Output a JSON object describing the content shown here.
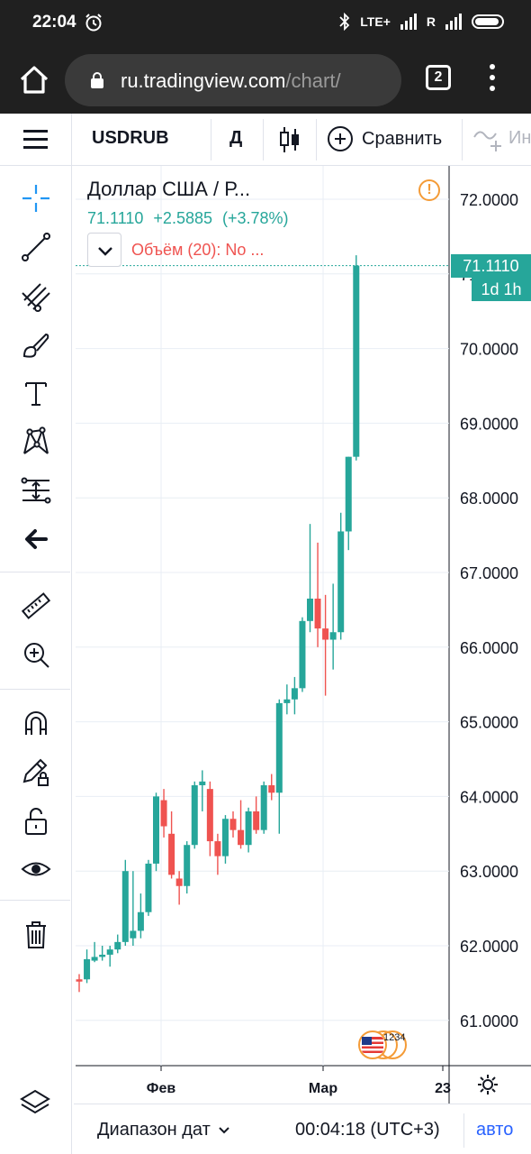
{
  "status_bar": {
    "time": "22:04",
    "network": "LTE+",
    "roaming": "R"
  },
  "browser": {
    "url_domain": "ru.tradingview.com",
    "url_path": "/chart/",
    "tab_count": "2"
  },
  "toolbar": {
    "symbol": "USDRUB",
    "interval": "Д",
    "compare_label": "Сравнить",
    "indicators_label": "Ин"
  },
  "legend": {
    "title": "Доллар США / Р...",
    "last": "71.1110",
    "change": "+2.5885",
    "change_pct": "(+3.78%)",
    "volume_label": "Объём (20): No ..."
  },
  "price_tag": {
    "value": "71.1110",
    "countdown": "1d 1h"
  },
  "bottom": {
    "range_label": "Диапазон дат",
    "clock": "00:04:18 (UTC+3)",
    "auto_label": "авто"
  },
  "flag_badge_text": "1234",
  "colors": {
    "up": "#26a69a",
    "down": "#ef5350",
    "accent": "#2962ff",
    "grid": "#e8eef4",
    "text": "#131722",
    "dark_bg": "#202020"
  },
  "chart_data": {
    "type": "candlestick",
    "title": "Доллар США / Р...",
    "y_ticks": [
      "72.0000",
      "71.0000",
      "70.0000",
      "69.0000",
      "68.0000",
      "67.0000",
      "66.0000",
      "65.0000",
      "64.0000",
      "63.0000",
      "62.0000",
      "61.0000"
    ],
    "x_ticks": [
      "Фев",
      "Мар",
      "23"
    ],
    "ylim": [
      60.4,
      72.4
    ],
    "last_price": 71.111,
    "candles": [
      {
        "o": 61.55,
        "h": 61.62,
        "l": 61.38,
        "c": 61.52
      },
      {
        "o": 61.55,
        "h": 61.95,
        "l": 61.5,
        "c": 61.82
      },
      {
        "o": 61.8,
        "h": 62.05,
        "l": 61.78,
        "c": 61.85
      },
      {
        "o": 61.85,
        "h": 62.0,
        "l": 61.8,
        "c": 61.88
      },
      {
        "o": 61.88,
        "h": 62.0,
        "l": 61.72,
        "c": 61.95
      },
      {
        "o": 61.95,
        "h": 62.15,
        "l": 61.9,
        "c": 62.05
      },
      {
        "o": 62.05,
        "h": 63.15,
        "l": 62.0,
        "c": 63.0
      },
      {
        "o": 62.1,
        "h": 63.0,
        "l": 62.0,
        "c": 62.2
      },
      {
        "o": 62.2,
        "h": 62.7,
        "l": 62.1,
        "c": 62.45
      },
      {
        "o": 62.45,
        "h": 63.15,
        "l": 62.4,
        "c": 63.1
      },
      {
        "o": 63.1,
        "h": 64.05,
        "l": 63.0,
        "c": 64.0
      },
      {
        "o": 63.95,
        "h": 64.1,
        "l": 63.45,
        "c": 63.6
      },
      {
        "o": 63.5,
        "h": 63.8,
        "l": 62.9,
        "c": 62.95
      },
      {
        "o": 62.9,
        "h": 63.0,
        "l": 62.55,
        "c": 62.8
      },
      {
        "o": 62.8,
        "h": 63.4,
        "l": 62.7,
        "c": 63.35
      },
      {
        "o": 63.35,
        "h": 64.2,
        "l": 63.3,
        "c": 64.15
      },
      {
        "o": 64.15,
        "h": 64.35,
        "l": 63.8,
        "c": 64.2
      },
      {
        "o": 64.1,
        "h": 64.2,
        "l": 63.2,
        "c": 63.4
      },
      {
        "o": 63.4,
        "h": 63.5,
        "l": 62.95,
        "c": 63.2
      },
      {
        "o": 63.2,
        "h": 63.75,
        "l": 63.1,
        "c": 63.7
      },
      {
        "o": 63.7,
        "h": 63.8,
        "l": 63.45,
        "c": 63.55
      },
      {
        "o": 63.55,
        "h": 63.95,
        "l": 63.3,
        "c": 63.35
      },
      {
        "o": 63.35,
        "h": 63.85,
        "l": 63.25,
        "c": 63.8
      },
      {
        "o": 63.8,
        "h": 64.0,
        "l": 63.5,
        "c": 63.55
      },
      {
        "o": 63.55,
        "h": 64.2,
        "l": 63.5,
        "c": 64.15
      },
      {
        "o": 64.15,
        "h": 64.3,
        "l": 63.95,
        "c": 64.05
      },
      {
        "o": 64.05,
        "h": 65.3,
        "l": 63.5,
        "c": 65.25
      },
      {
        "o": 65.25,
        "h": 65.5,
        "l": 65.1,
        "c": 65.3
      },
      {
        "o": 65.3,
        "h": 65.6,
        "l": 65.1,
        "c": 65.45
      },
      {
        "o": 65.45,
        "h": 66.4,
        "l": 65.4,
        "c": 66.35
      },
      {
        "o": 66.35,
        "h": 67.65,
        "l": 66.2,
        "c": 66.65
      },
      {
        "o": 66.65,
        "h": 67.4,
        "l": 66.0,
        "c": 66.25
      },
      {
        "o": 66.25,
        "h": 66.7,
        "l": 65.35,
        "c": 66.1
      },
      {
        "o": 66.1,
        "h": 66.85,
        "l": 65.7,
        "c": 66.2
      },
      {
        "o": 66.2,
        "h": 67.8,
        "l": 66.1,
        "c": 67.55
      },
      {
        "o": 67.55,
        "h": 68.55,
        "l": 67.3,
        "c": 68.55
      },
      {
        "o": 68.55,
        "h": 71.25,
        "l": 68.5,
        "c": 71.111
      }
    ]
  }
}
